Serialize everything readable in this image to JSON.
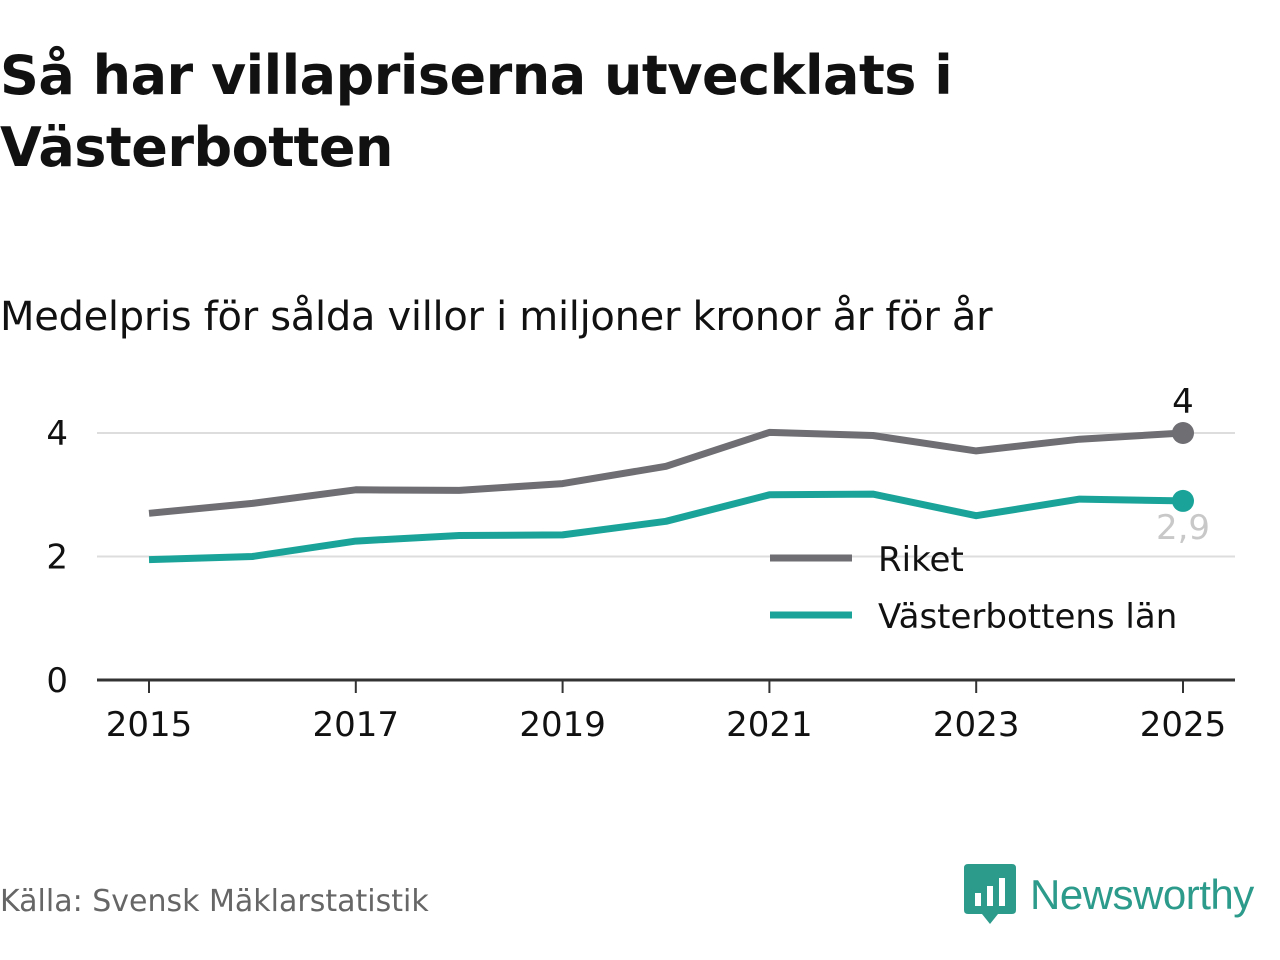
{
  "title": "Så har villapriserna utvecklats i Västerbotten",
  "subtitle": "Medelpris för sålda villor i miljoner kronor år för år",
  "source": "Källa: Svensk Mäklarstatistik",
  "brand": {
    "name": "Newsworthy",
    "icon": "newsworthy-logo-icon"
  },
  "colors": {
    "riket": "#6e6e73",
    "lan": "#1aa499",
    "grid": "#dddddd",
    "axis": "#333333",
    "text": "#111111",
    "brand": "#2d9b8c"
  },
  "chart_data": {
    "type": "line",
    "title": "Medelpris för sålda villor i miljoner kronor år för år",
    "xlabel": "",
    "ylabel": "",
    "x": [
      2015,
      2016,
      2017,
      2018,
      2019,
      2020,
      2021,
      2022,
      2023,
      2024,
      2025
    ],
    "xlim": [
      2015,
      2025
    ],
    "ylim": [
      0,
      4
    ],
    "x_ticks": [
      "2015",
      "2017",
      "2019",
      "2021",
      "2023",
      "2025"
    ],
    "y_ticks": [
      "0",
      "2",
      "4"
    ],
    "grid": true,
    "legend_position": "bottom-right",
    "series": [
      {
        "name": "Riket",
        "color": "#6e6e73",
        "values": [
          2.7,
          2.86,
          3.08,
          3.07,
          3.18,
          3.46,
          4.01,
          3.96,
          3.71,
          3.9,
          4.0
        ],
        "end_label": "4"
      },
      {
        "name": "Västerbottens län",
        "color": "#1aa499",
        "values": [
          1.95,
          2.0,
          2.25,
          2.34,
          2.35,
          2.57,
          3.0,
          3.01,
          2.66,
          2.93,
          2.9
        ],
        "end_label": "2,9"
      }
    ]
  }
}
